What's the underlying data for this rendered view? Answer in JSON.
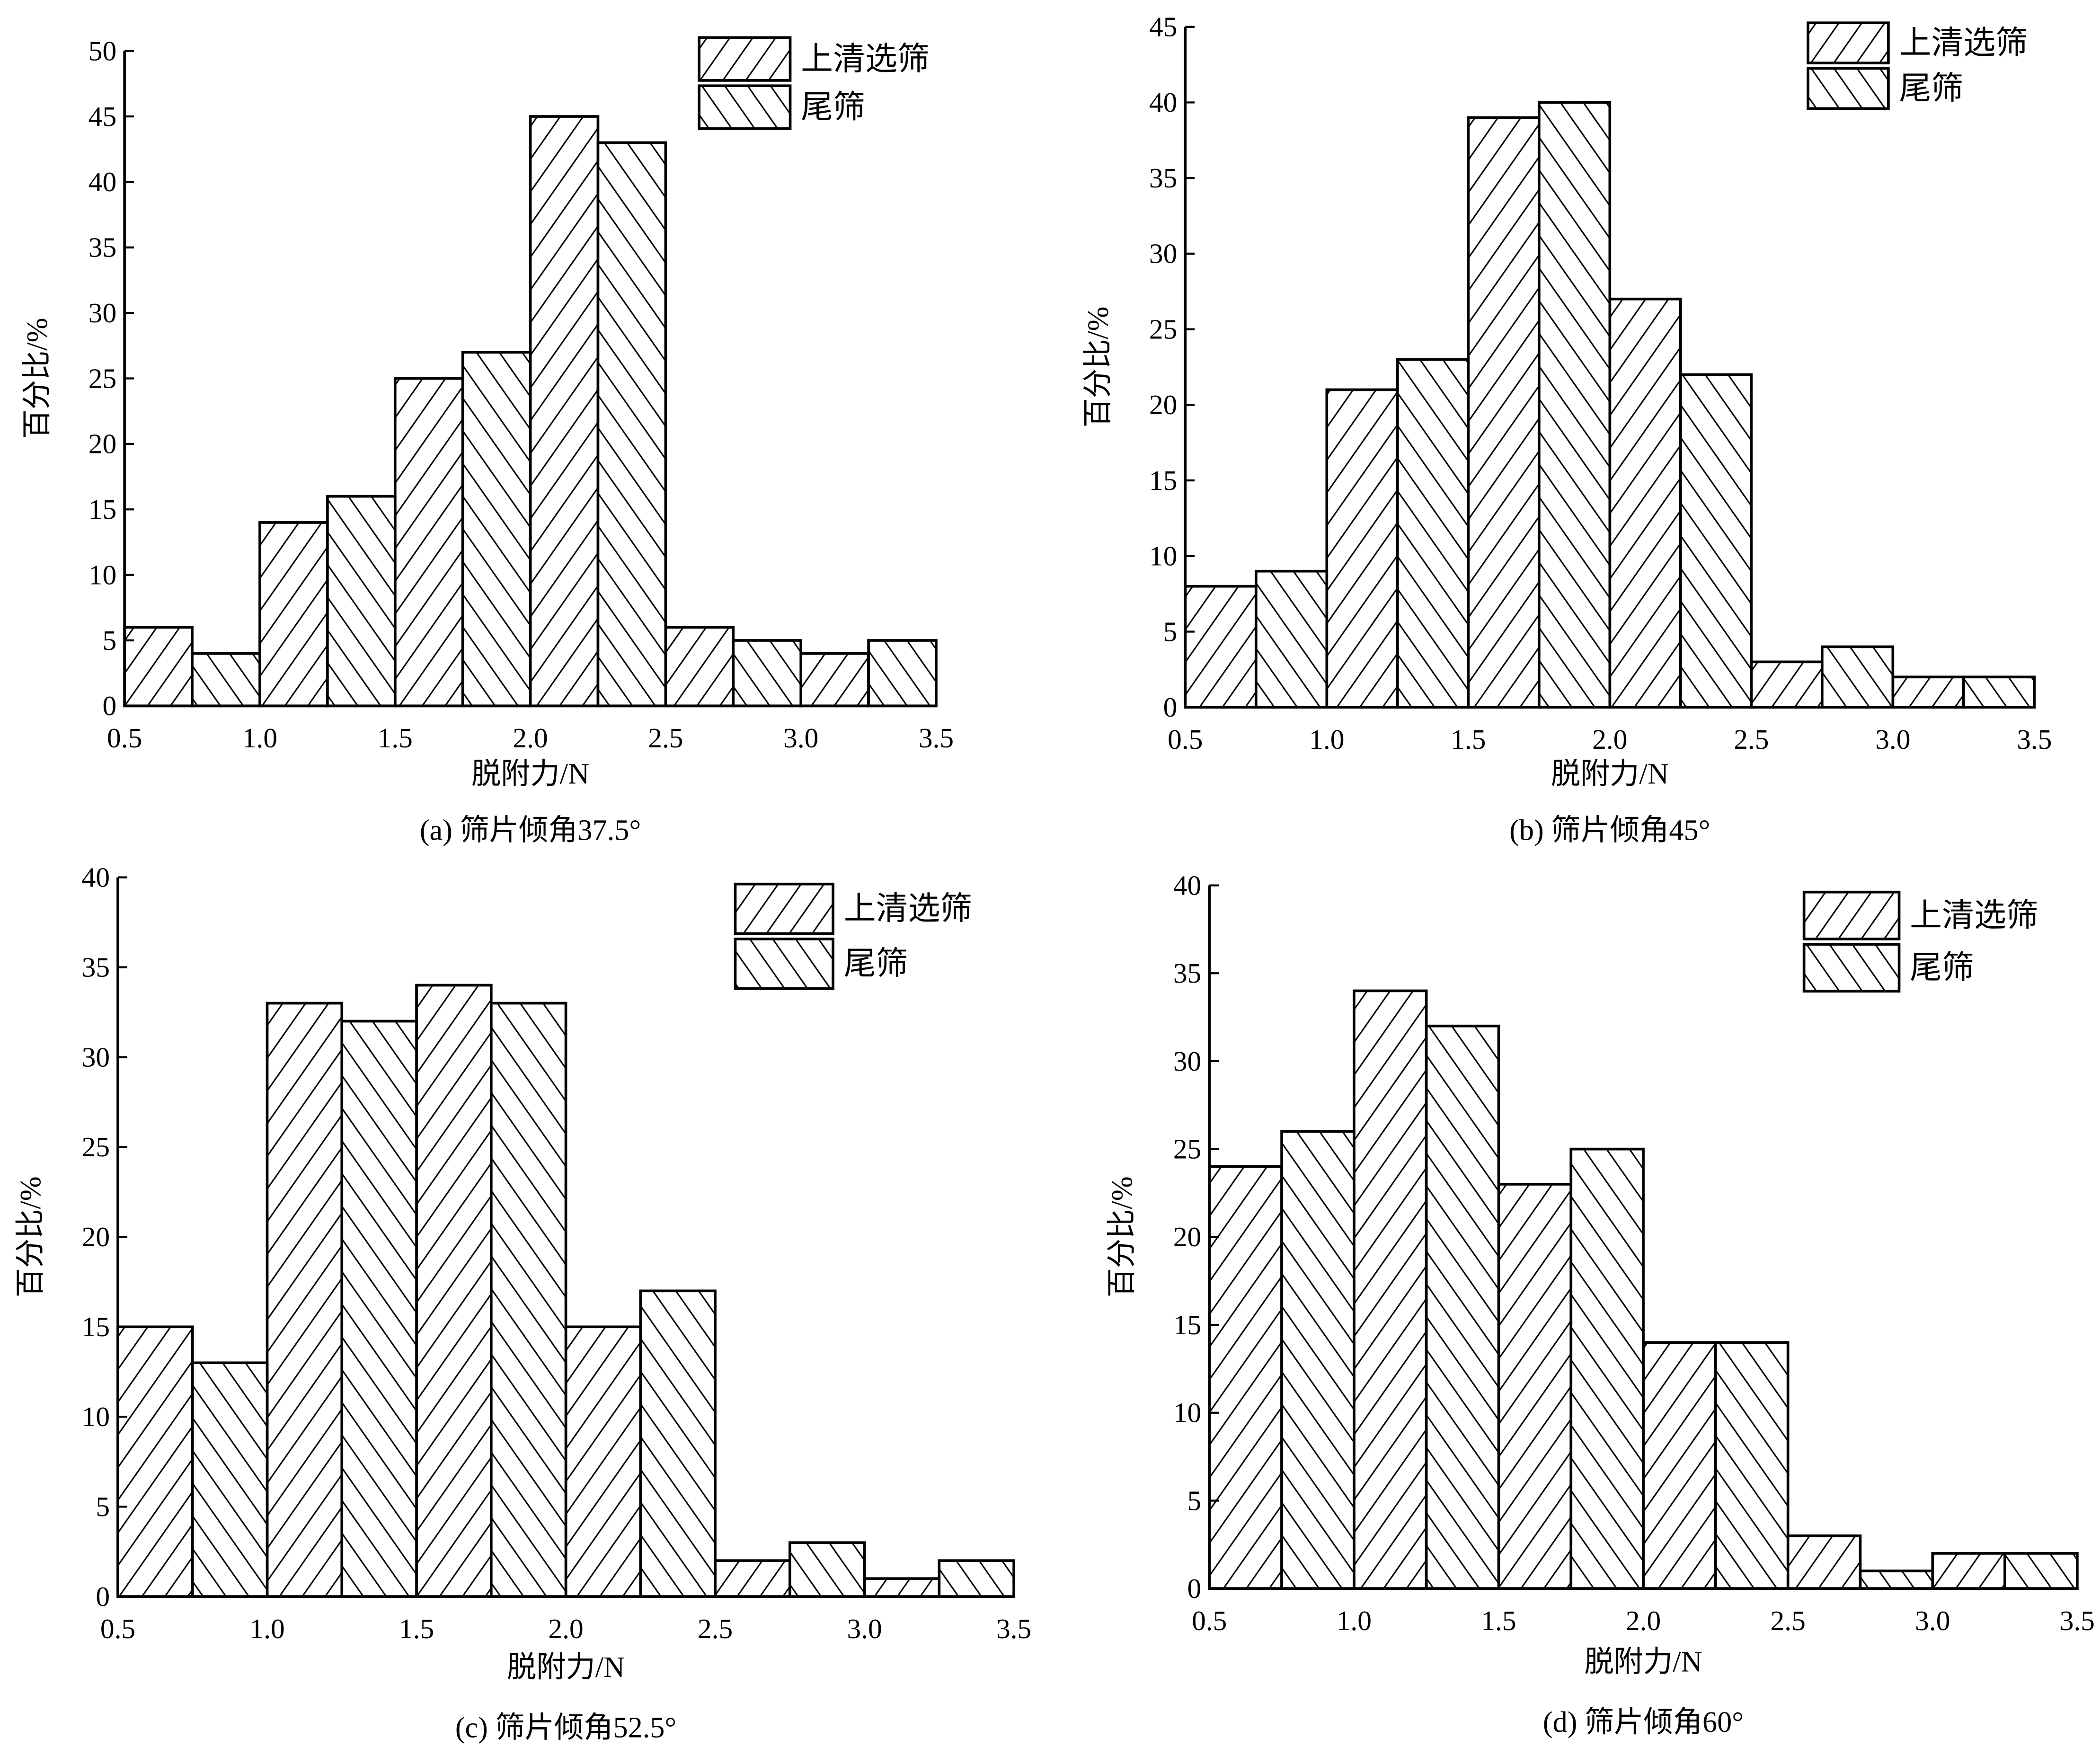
{
  "colors": {
    "stroke": "#000000",
    "background": "#ffffff"
  },
  "chart_data": [
    {
      "type": "bar",
      "caption": "(a) 筛片倾角37.5°",
      "xlabel": "脱附力/N",
      "ylabel": "百分比/%",
      "xticks": [
        "0.5",
        "1.0",
        "1.5",
        "2.0",
        "2.5",
        "3.0",
        "3.5"
      ],
      "yticks": [
        "0",
        "5",
        "10",
        "15",
        "20",
        "25",
        "30",
        "35",
        "40",
        "45",
        "50"
      ],
      "ylim": [
        0,
        50
      ],
      "xlim": [
        0.5,
        3.5
      ],
      "categories": [
        "0.5-1.0",
        "1.0-1.5",
        "1.5-2.0",
        "2.0-2.5",
        "2.5-3.0",
        "3.0-3.5"
      ],
      "series": [
        {
          "name": "上清选筛",
          "hatch": "forward",
          "values": [
            6,
            14,
            25,
            45,
            6,
            4
          ]
        },
        {
          "name": "尾筛",
          "hatch": "back",
          "values": [
            4,
            16,
            27,
            43,
            5,
            5
          ]
        }
      ],
      "legend": "top-right"
    },
    {
      "type": "bar",
      "caption": "(b) 筛片倾角45°",
      "xlabel": "脱附力/N",
      "ylabel": "百分比/%",
      "xticks": [
        "0.5",
        "1.0",
        "1.5",
        "2.0",
        "2.5",
        "3.0",
        "3.5"
      ],
      "yticks": [
        "0",
        "5",
        "10",
        "15",
        "20",
        "25",
        "30",
        "35",
        "40",
        "45"
      ],
      "ylim": [
        0,
        45
      ],
      "xlim": [
        0.5,
        3.5
      ],
      "categories": [
        "0.5-1.0",
        "1.0-1.5",
        "1.5-2.0",
        "2.0-2.5",
        "2.5-3.0",
        "3.0-3.5"
      ],
      "series": [
        {
          "name": "上清选筛",
          "hatch": "forward",
          "values": [
            8,
            21,
            39,
            27,
            3,
            2
          ]
        },
        {
          "name": "尾筛",
          "hatch": "back",
          "values": [
            9,
            23,
            40,
            22,
            4,
            2
          ]
        }
      ],
      "legend": "top-right"
    },
    {
      "type": "bar",
      "caption": "(c) 筛片倾角52.5°",
      "xlabel": "脱附力/N",
      "ylabel": "百分比/%",
      "xticks": [
        "0.5",
        "1.0",
        "1.5",
        "2.0",
        "2.5",
        "3.0",
        "3.5"
      ],
      "yticks": [
        "0",
        "5",
        "10",
        "15",
        "20",
        "25",
        "30",
        "35",
        "40"
      ],
      "ylim": [
        0,
        40
      ],
      "xlim": [
        0.5,
        3.5
      ],
      "categories": [
        "0.5-1.0",
        "1.0-1.5",
        "1.5-2.0",
        "2.0-2.5",
        "2.5-3.0",
        "3.0-3.5"
      ],
      "series": [
        {
          "name": "上清选筛",
          "hatch": "forward",
          "values": [
            15,
            33,
            34,
            15,
            2,
            1
          ]
        },
        {
          "name": "尾筛",
          "hatch": "back",
          "values": [
            13,
            32,
            33,
            17,
            3,
            2
          ]
        }
      ],
      "legend": "top-right"
    },
    {
      "type": "bar",
      "caption": "(d) 筛片倾角60°",
      "xlabel": "脱附力/N",
      "ylabel": "百分比/%",
      "xticks": [
        "0.5",
        "1.0",
        "1.5",
        "2.0",
        "2.5",
        "3.0",
        "3.5"
      ],
      "yticks": [
        "0",
        "5",
        "10",
        "15",
        "20",
        "25",
        "30",
        "35",
        "40"
      ],
      "ylim": [
        0,
        40
      ],
      "xlim": [
        0.5,
        3.5
      ],
      "categories": [
        "0.5-1.0",
        "1.0-1.5",
        "1.5-2.0",
        "2.0-2.5",
        "2.5-3.0",
        "3.0-3.5"
      ],
      "series": [
        {
          "name": "上清选筛",
          "hatch": "forward",
          "values": [
            24,
            34,
            23,
            14,
            3,
            2
          ]
        },
        {
          "name": "尾筛",
          "hatch": "back",
          "values": [
            26,
            32,
            25,
            14,
            1,
            2
          ]
        }
      ],
      "legend": "top-right"
    }
  ]
}
